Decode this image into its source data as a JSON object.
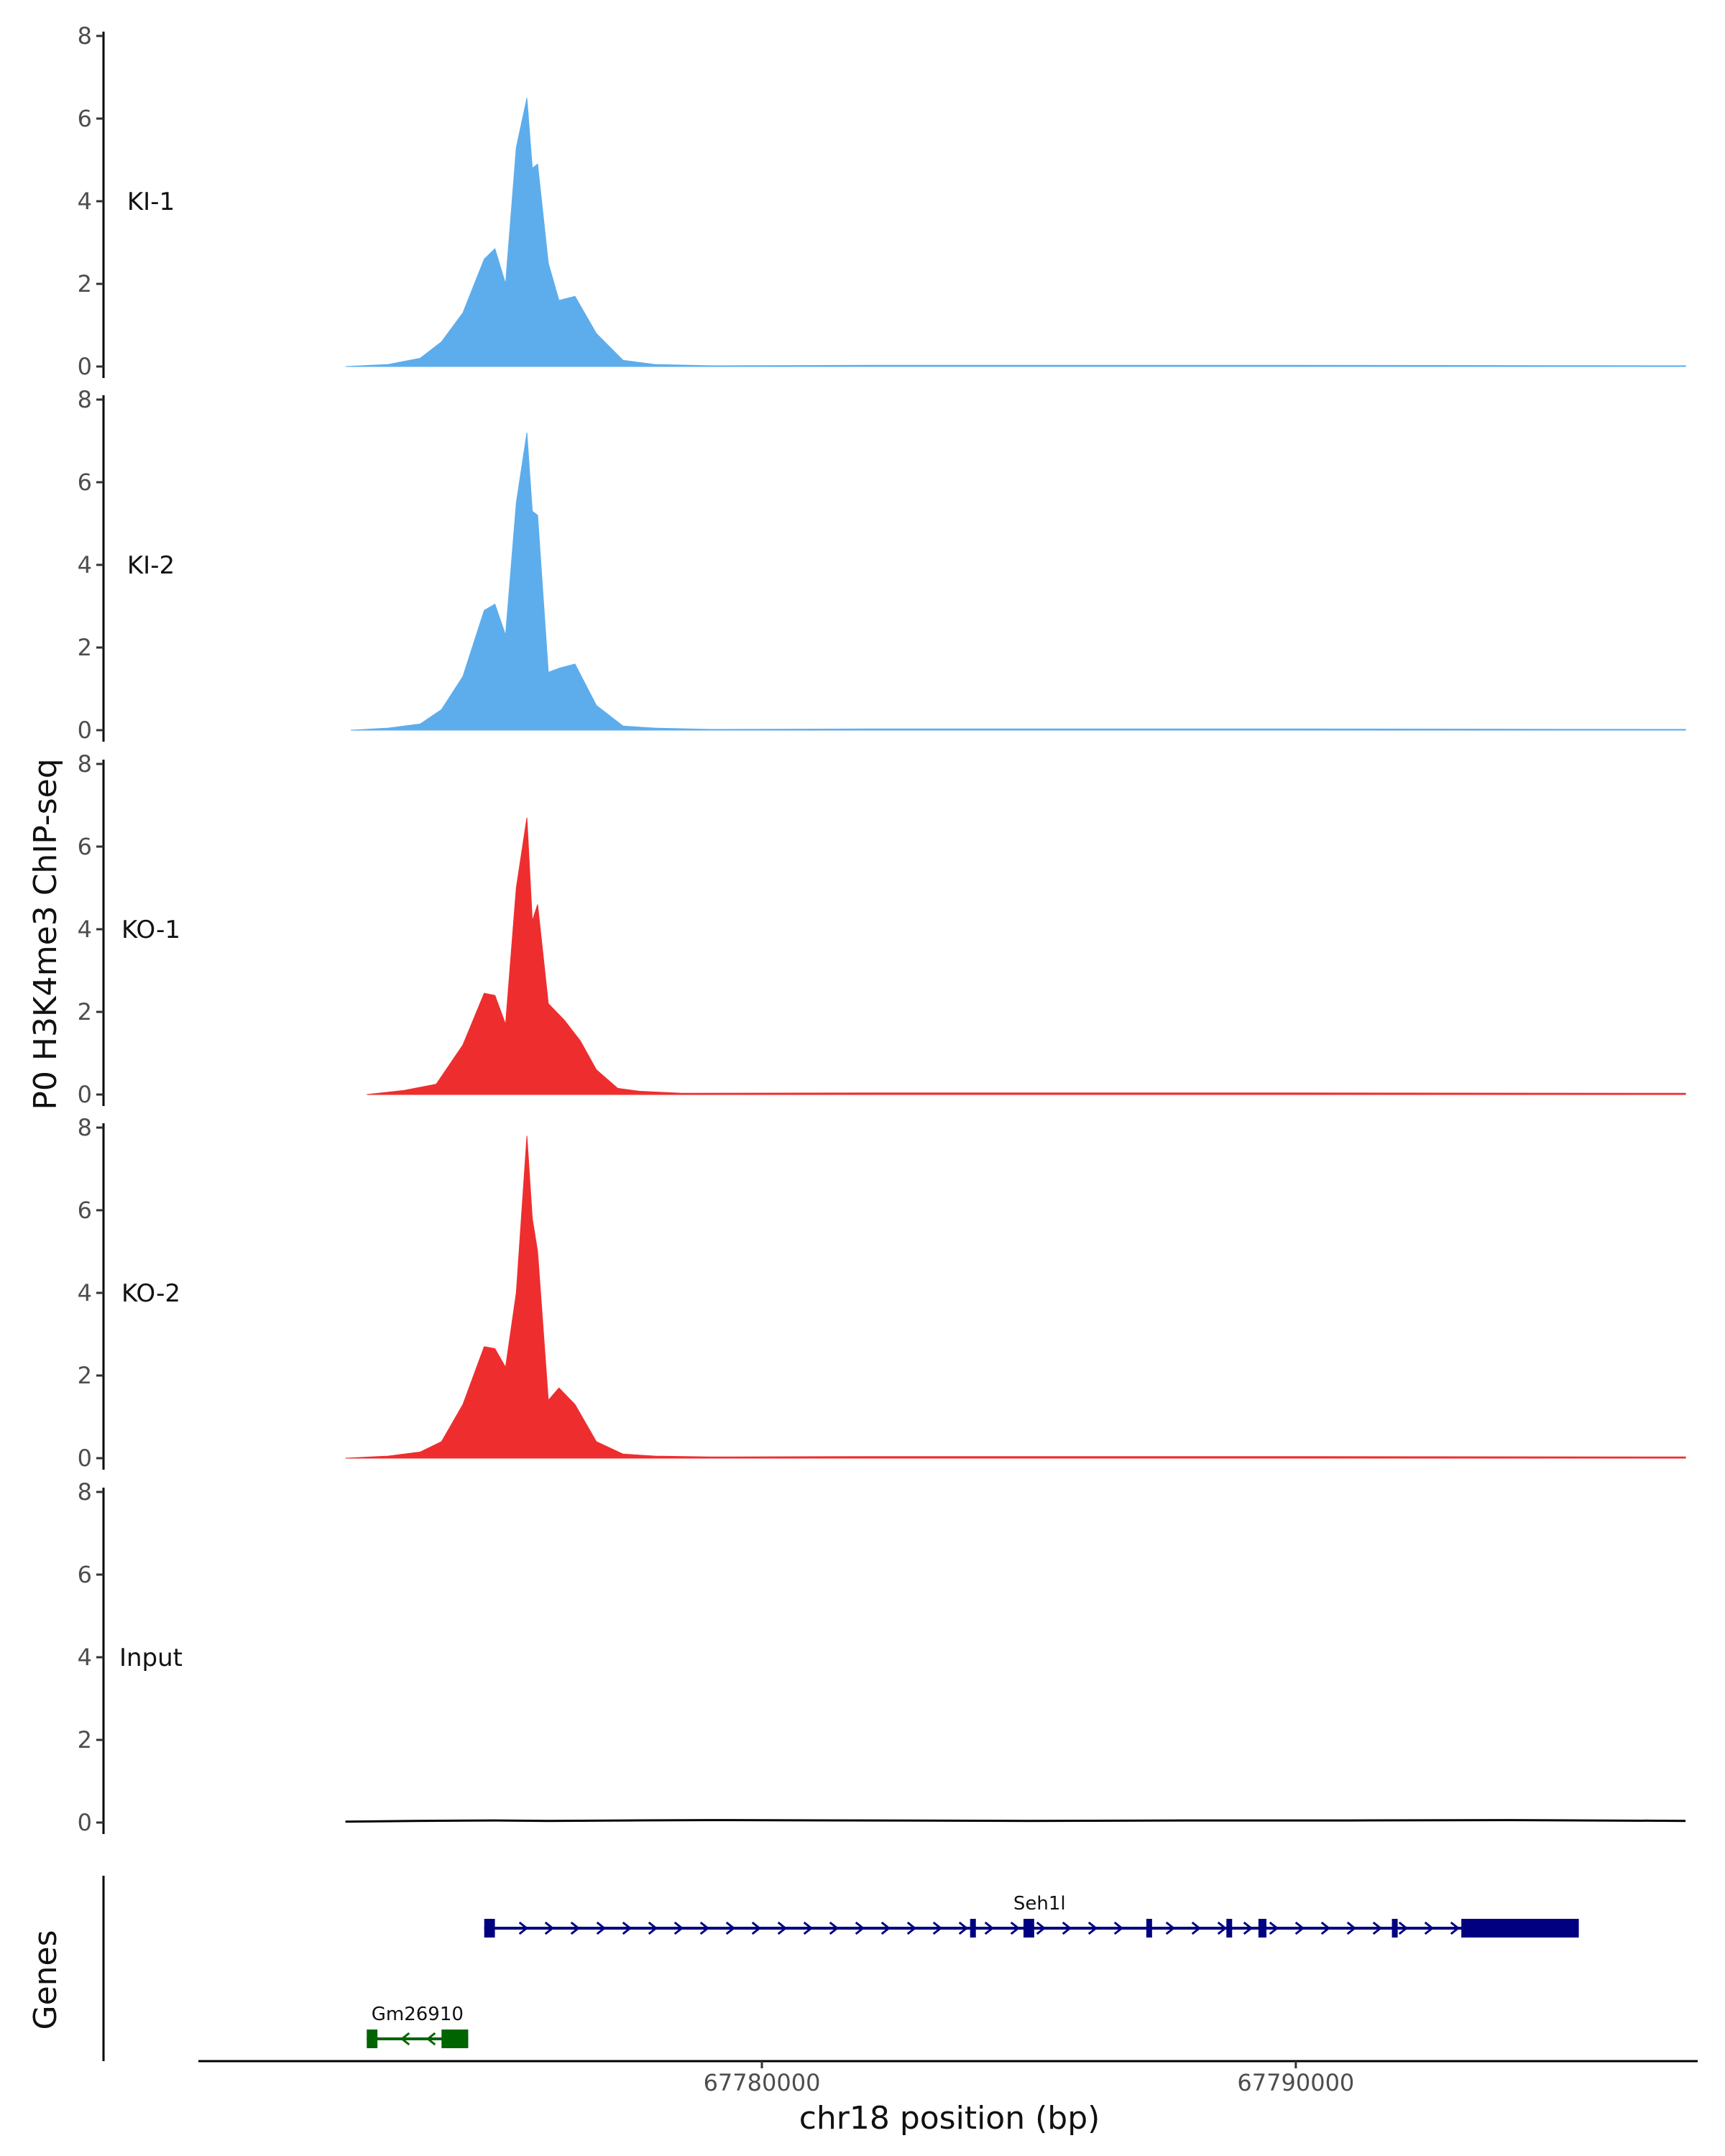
{
  "chart_data": {
    "type": "area",
    "ylabel": "P0 H3K4me3 ChIP-seq",
    "xlabel": "chr18 position (bp)",
    "genes_label": "Genes",
    "xlim": [
      67769500,
      67797500
    ],
    "x_ticks": [
      67780000,
      67790000
    ],
    "x_tick_labels": [
      "67780000",
      "67790000"
    ],
    "ylim": [
      0,
      8
    ],
    "y_ticks": [
      0,
      2,
      4,
      6,
      8
    ],
    "y_tick_labels": [
      "0",
      "2",
      "4",
      "6",
      "8"
    ],
    "tracks": [
      {
        "name": "KI-1",
        "color": "#5DADEC",
        "x": [
          67772200,
          67773000,
          67773600,
          67774000,
          67774400,
          67774800,
          67775000,
          67775200,
          67775400,
          67775600,
          67775700,
          67775800,
          67776000,
          67776200,
          67776500,
          67776900,
          67777400,
          67778000,
          67779000,
          67782000,
          67790000,
          67797300
        ],
        "y": [
          0.0,
          0.05,
          0.2,
          0.6,
          1.3,
          2.6,
          2.85,
          2.0,
          5.3,
          6.5,
          4.8,
          4.9,
          2.5,
          1.6,
          1.7,
          0.8,
          0.15,
          0.05,
          0.02,
          0.03,
          0.03,
          0.02
        ]
      },
      {
        "name": "KI-2",
        "color": "#5DADEC",
        "x": [
          67772300,
          67773000,
          67773600,
          67774000,
          67774400,
          67774800,
          67775000,
          67775200,
          67775400,
          67775600,
          67775700,
          67775800,
          67776000,
          67776200,
          67776500,
          67776900,
          67777400,
          67778000,
          67779000,
          67782000,
          67790000,
          67797300
        ],
        "y": [
          0.0,
          0.05,
          0.15,
          0.5,
          1.3,
          2.9,
          3.05,
          2.3,
          5.5,
          7.2,
          5.3,
          5.2,
          1.4,
          1.5,
          1.6,
          0.6,
          0.1,
          0.05,
          0.02,
          0.03,
          0.03,
          0.02
        ]
      },
      {
        "name": "KO-1",
        "color": "#EE2E2E",
        "x": [
          67772600,
          67773300,
          67773900,
          67774400,
          67774800,
          67775000,
          67775200,
          67775400,
          67775600,
          67775700,
          67775800,
          67776000,
          67776300,
          67776600,
          67776900,
          67777300,
          67777700,
          67778500,
          67782000,
          67790000,
          67797300
        ],
        "y": [
          0.0,
          0.1,
          0.25,
          1.2,
          2.45,
          2.4,
          1.7,
          5.0,
          6.7,
          4.2,
          4.6,
          2.2,
          1.8,
          1.3,
          0.6,
          0.15,
          0.08,
          0.03,
          0.04,
          0.04,
          0.03
        ]
      },
      {
        "name": "KO-2",
        "color": "#EE2E2E",
        "x": [
          67772200,
          67773000,
          67773600,
          67774000,
          67774400,
          67774800,
          67775000,
          67775200,
          67775400,
          67775600,
          67775700,
          67775800,
          67776000,
          67776200,
          67776500,
          67776900,
          67777400,
          67778000,
          67779000,
          67782000,
          67790000,
          67797300
        ],
        "y": [
          0.0,
          0.05,
          0.15,
          0.4,
          1.3,
          2.7,
          2.65,
          2.2,
          4.0,
          7.8,
          5.8,
          5.0,
          1.4,
          1.7,
          1.3,
          0.4,
          0.1,
          0.05,
          0.03,
          0.04,
          0.04,
          0.03
        ]
      },
      {
        "name": "Input",
        "color": "#000000",
        "x": [
          67772200,
          67773500,
          67775000,
          67776000,
          67777500,
          67779000,
          67782000,
          67785000,
          67788000,
          67791000,
          67794000,
          67797300
        ],
        "y": [
          0.02,
          0.04,
          0.05,
          0.04,
          0.05,
          0.06,
          0.05,
          0.04,
          0.05,
          0.05,
          0.06,
          0.04
        ]
      }
    ],
    "genes": [
      {
        "name": "Seh1l",
        "color": "#000080",
        "strand": "+",
        "start": 67774800,
        "end": 67795300,
        "exons": [
          [
            67774800,
            67775000
          ],
          [
            67783900,
            67784000
          ],
          [
            67784900,
            67785100
          ],
          [
            67787200,
            67787300
          ],
          [
            67788700,
            67788800
          ],
          [
            67789300,
            67789450
          ],
          [
            67791800,
            67791900
          ],
          [
            67793100,
            67795300
          ]
        ]
      },
      {
        "name": "Gm26910",
        "color": "#006400",
        "strand": "-",
        "start": 67772600,
        "end": 67774500,
        "exons": [
          [
            67772600,
            67772800
          ],
          [
            67774000,
            67774500
          ]
        ]
      }
    ]
  }
}
